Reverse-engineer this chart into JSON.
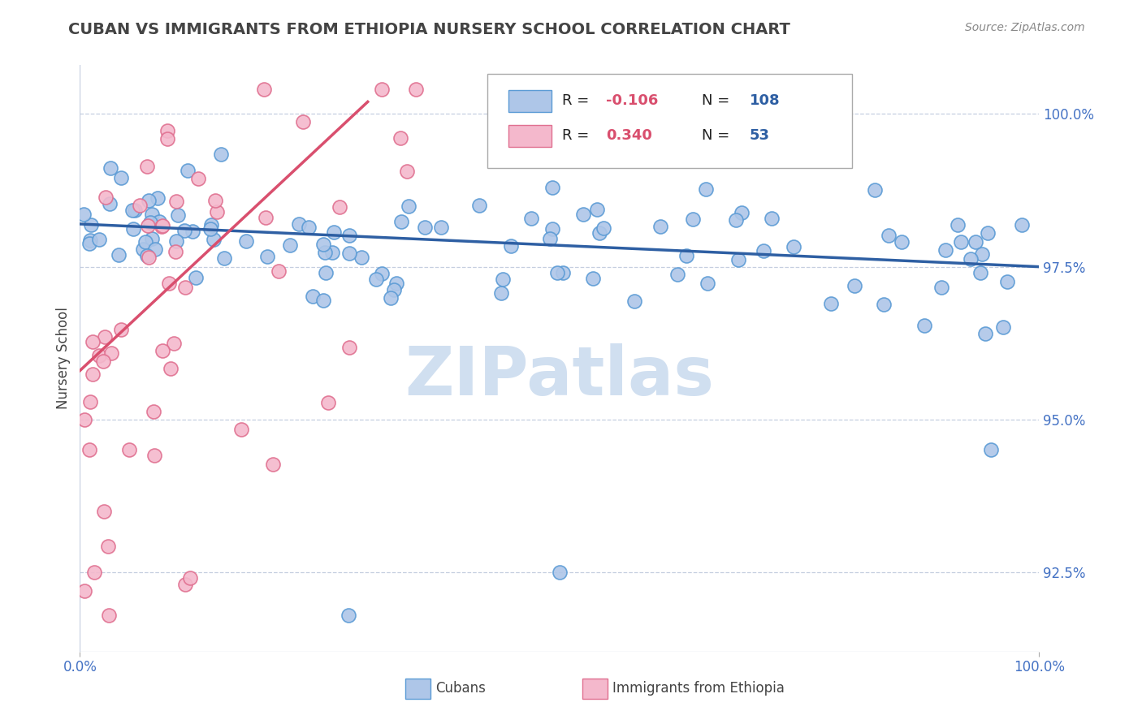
{
  "title": "CUBAN VS IMMIGRANTS FROM ETHIOPIA NURSERY SCHOOL CORRELATION CHART",
  "source_text": "Source: ZipAtlas.com",
  "ylabel": "Nursery School",
  "x_min": 0.0,
  "x_max": 100.0,
  "y_min": 91.2,
  "y_max": 100.8,
  "y_ticks": [
    92.5,
    95.0,
    97.5,
    100.0
  ],
  "y_tick_labels": [
    "92.5%",
    "95.0%",
    "97.5%",
    "100.0%"
  ],
  "x_ticks": [
    0.0,
    100.0
  ],
  "x_tick_labels": [
    "0.0%",
    "100.0%"
  ],
  "blue_R": -0.106,
  "blue_N": 108,
  "pink_R": 0.34,
  "pink_N": 53,
  "blue_color": "#aec6e8",
  "blue_edge_color": "#5b9bd5",
  "pink_color": "#f4b8cc",
  "pink_edge_color": "#e07090",
  "blue_line_color": "#2e5fa3",
  "pink_line_color": "#d94f6e",
  "grid_color": "#c5cfe0",
  "title_color": "#444444",
  "axis_tick_color": "#4472c4",
  "watermark_color": "#d0dff0",
  "legend_R_neg_color": "#d94f6e",
  "legend_R_pos_color": "#d94f6e",
  "legend_N_color": "#2e5fa3",
  "blue_line_start_y": 98.2,
  "blue_line_end_y": 97.5,
  "pink_line_start_x": 0,
  "pink_line_start_y": 95.8,
  "pink_line_end_x": 30,
  "pink_line_end_y": 100.2
}
